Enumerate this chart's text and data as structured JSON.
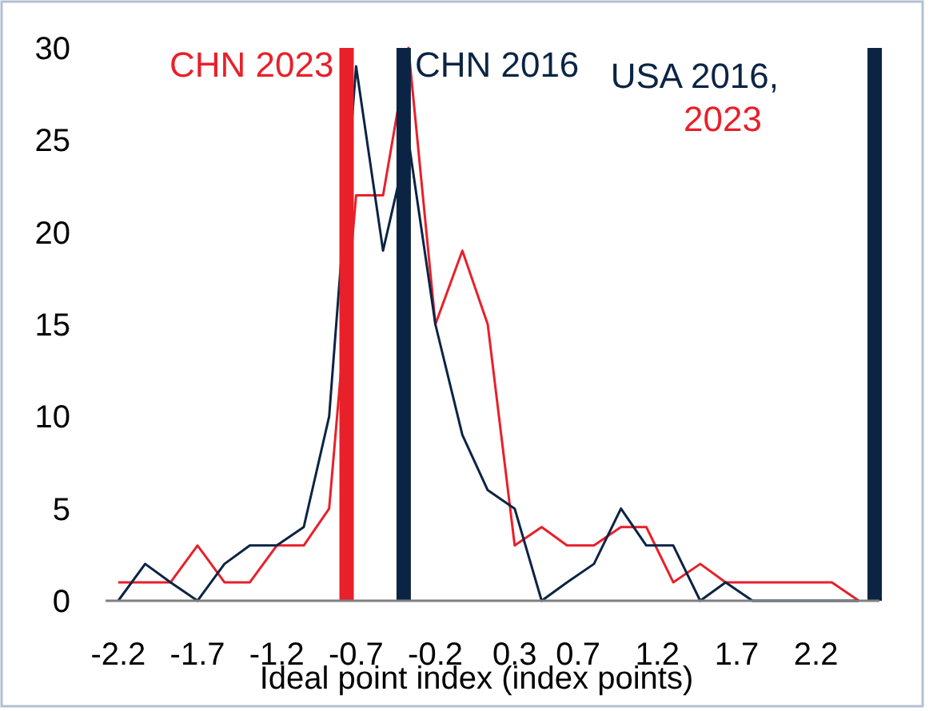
{
  "chart_data": {
    "type": "line",
    "xlabel": "Ideal point index (index points)",
    "x": [
      -2.2,
      -2.03,
      -1.87,
      -1.7,
      -1.53,
      -1.37,
      -1.2,
      -1.03,
      -0.87,
      -0.7,
      -0.53,
      -0.37,
      -0.2,
      -0.03,
      0.13,
      0.3,
      0.47,
      0.63,
      0.8,
      0.97,
      1.13,
      1.3,
      1.47,
      1.63,
      1.8,
      1.97,
      2.13,
      2.3,
      2.47
    ],
    "series": [
      {
        "color": "#e8202a",
        "values": [
          1,
          1,
          1,
          3,
          1,
          1,
          3,
          3,
          5,
          22,
          22,
          30,
          15,
          19,
          15,
          3,
          4,
          3,
          3,
          4,
          4,
          1,
          2,
          1,
          1,
          1,
          1,
          1,
          0
        ]
      },
      {
        "color": "#0b2444",
        "values": [
          0,
          2,
          1,
          0,
          2,
          3,
          3,
          4,
          10,
          29,
          19,
          25,
          15,
          9,
          6,
          5,
          0,
          1,
          2,
          5,
          3,
          3,
          0,
          1,
          0,
          0,
          0,
          0,
          0
        ]
      }
    ],
    "xlim": [
      -2.28,
      2.6
    ],
    "xticks": [
      -2.2,
      -1.7,
      -1.2,
      -0.7,
      -0.2,
      0.3,
      0.7,
      1.2,
      1.7,
      2.2
    ],
    "ylim": [
      0,
      30
    ],
    "yticks": [
      0,
      5,
      10,
      15,
      20,
      25,
      30
    ],
    "ref_lines": [
      {
        "axis": "x",
        "value": -0.76,
        "label": "CHN 2023",
        "color": "#e8202a"
      },
      {
        "axis": "x",
        "value": -0.4,
        "label": "CHN 2016",
        "color": "#0b2444"
      },
      {
        "axis": "x",
        "value": 2.57,
        "label": "USA 2016,",
        "color": "#0b2444"
      }
    ],
    "annotations": [
      "2023"
    ],
    "grid": false,
    "marker": "none",
    "line_style": "solid"
  }
}
